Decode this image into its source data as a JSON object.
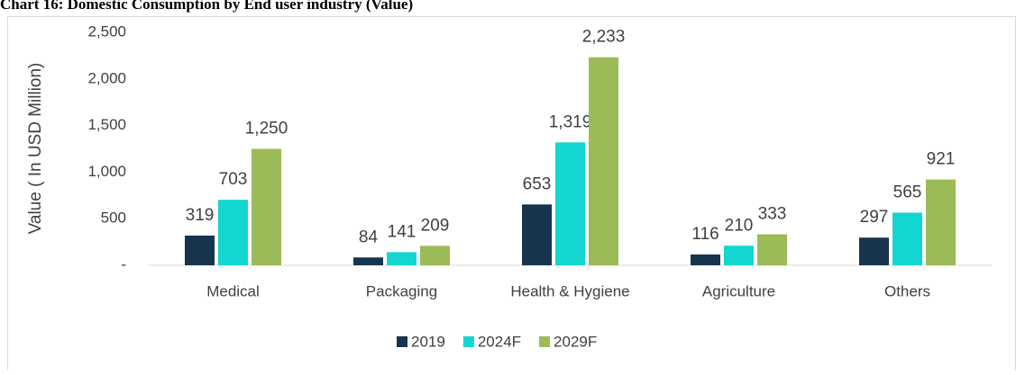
{
  "chart_data": {
    "type": "bar",
    "title": "Chart 16: Domestic Consumption by End user industry (Value)",
    "y_label": "Value ( In USD Million)",
    "categories": [
      "Medical",
      "Packaging",
      "Health & Hygiene",
      "Agriculture",
      "Others"
    ],
    "series": [
      {
        "name": "2019",
        "color": "#17344f",
        "values": [
          319,
          84,
          653,
          116,
          297
        ],
        "value_labels": [
          "319",
          "84",
          "653",
          "116",
          "297"
        ]
      },
      {
        "name": "2024F",
        "color": "#14d6d0",
        "values": [
          703,
          141,
          1319,
          210,
          565
        ],
        "value_labels": [
          "703",
          "141",
          "1,319",
          "210",
          "565"
        ]
      },
      {
        "name": "2029F",
        "color": "#9bbb59",
        "values": [
          1250,
          209,
          2233,
          333,
          921
        ],
        "value_labels": [
          "1,250",
          "209",
          "2,233",
          "333",
          "921"
        ]
      }
    ],
    "ylim": [
      0,
      2500
    ],
    "yticks": [
      {
        "value": 0,
        "label": "-"
      },
      500,
      {
        "value": 1000,
        "label": "1,000"
      },
      {
        "value": 1500,
        "label": "1,500"
      },
      {
        "value": 2000,
        "label": "2,000"
      },
      {
        "value": 2500,
        "label": "2,500"
      }
    ],
    "legend": "bottom"
  }
}
